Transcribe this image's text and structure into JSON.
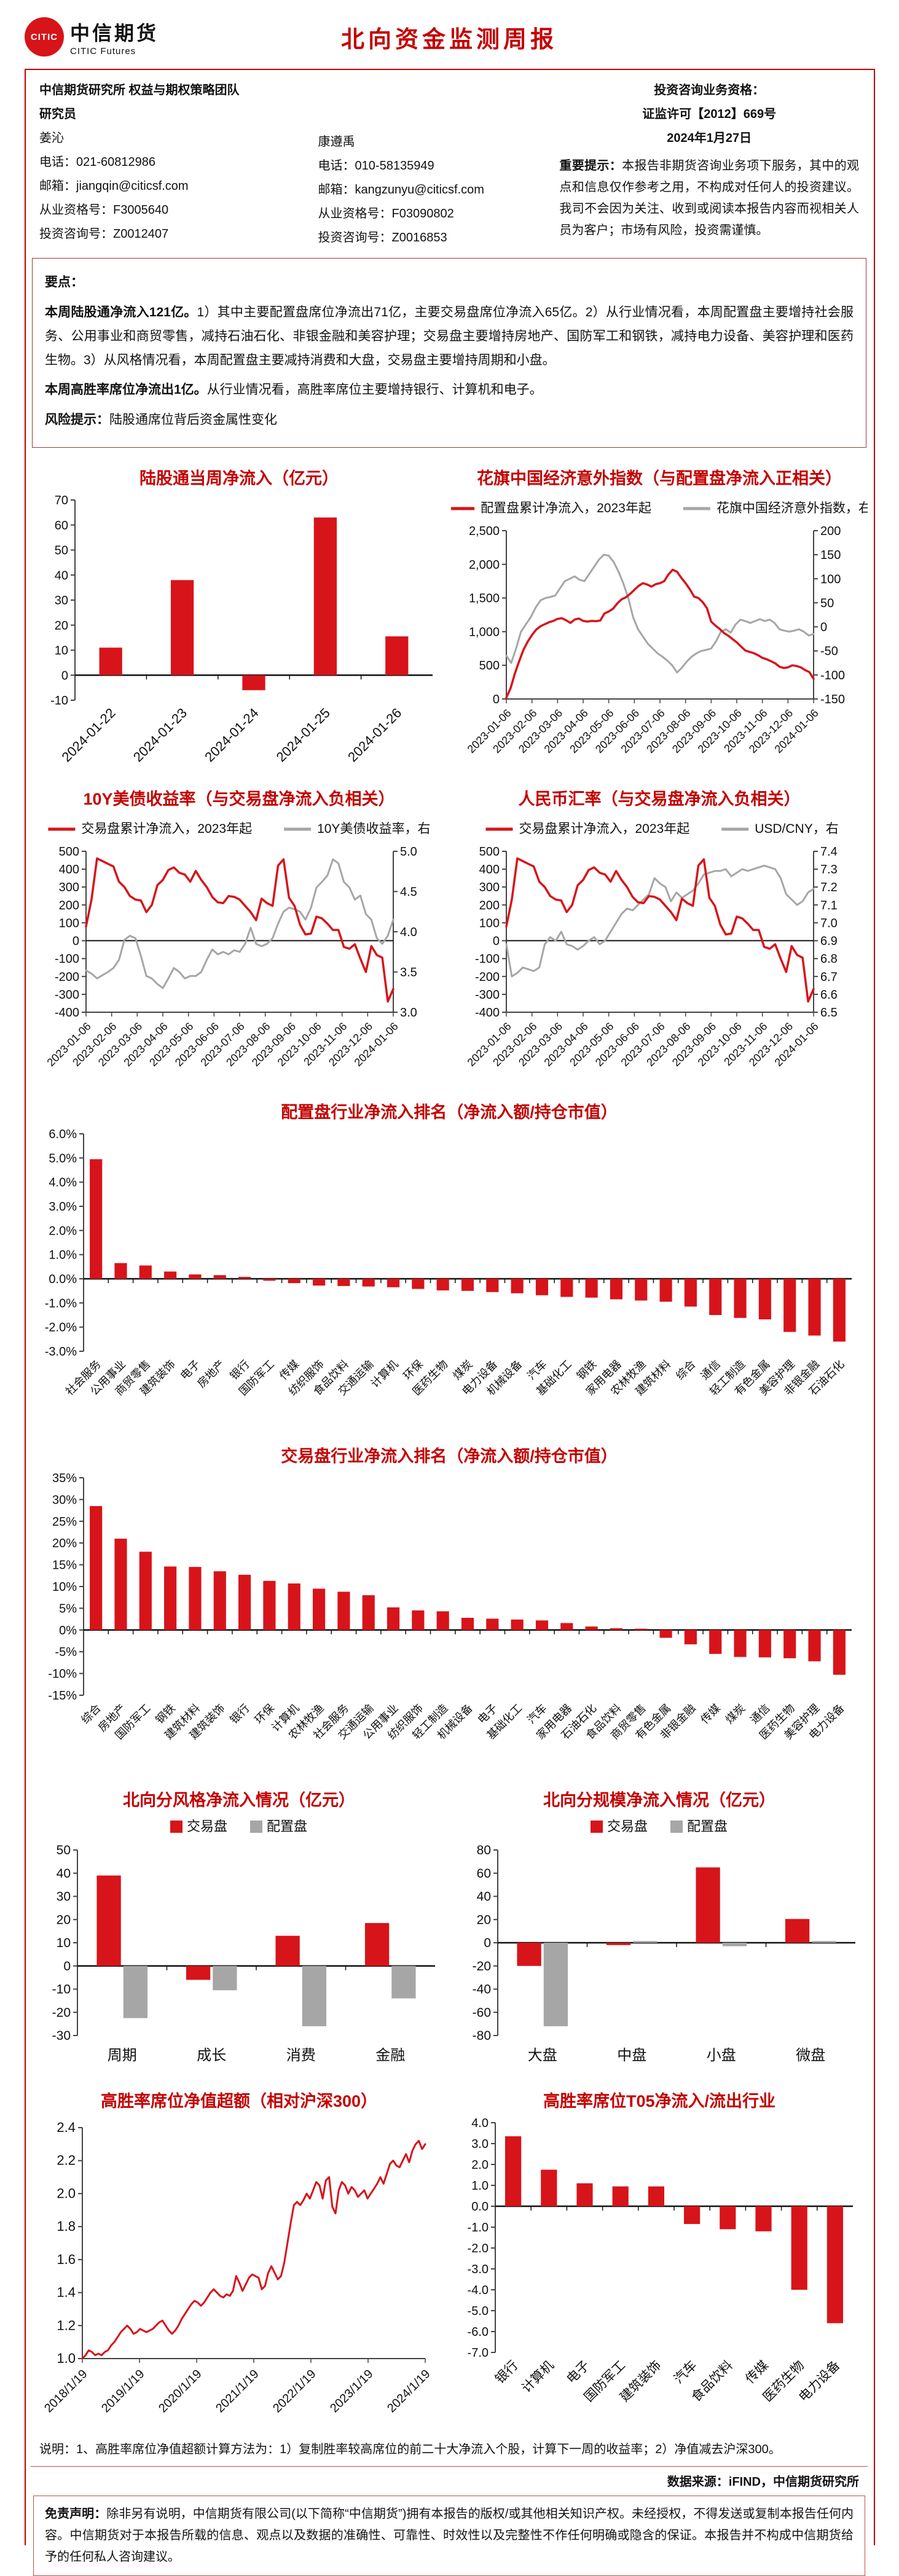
{
  "page": {
    "title": "北向资金监测周报",
    "brand": {
      "logo_mark_text": "CITIC",
      "logo_cn": "中信期货",
      "logo_en": "CITIC Futures"
    },
    "team_line": "中信期货研究所 权益与期权策略团队",
    "researcher_label": "研究员",
    "qualification_label": "投资咨询业务资格：",
    "qualification_value": "证监许可【2012】669号",
    "report_date": "2024年1月27日",
    "important_label": "重要提示：",
    "important_text": "本报告非期货咨询业务项下服务，其中的观点和信息仅作参考之用，不构成对任何人的投资建议。我司不会因为关注、收到或阅读本报告内容而视相关人员为客户；市场有风险，投资需谨慎。",
    "analysts": [
      {
        "name": "姜沁",
        "phone_label": "电话：",
        "phone": "021-60812986",
        "email_label": "邮箱：",
        "email": "jiangqin@citicsf.com",
        "cert_label": "从业资格号：",
        "cert": "F3005640",
        "adv_label": "投资咨询号：",
        "adv": "Z0012407"
      },
      {
        "name": "康遵禹",
        "phone_label": "电话：",
        "phone": "010-58135949",
        "email_label": "邮箱：",
        "email": "kangzunyu@citicsf.com",
        "cert_label": "从业资格号：",
        "cert": "F03090802",
        "adv_label": "投资咨询号：",
        "adv": "Z0016853"
      }
    ],
    "highlights_label": "要点：",
    "highlights": [
      {
        "bold": "本周陆股通净流入121亿。",
        "text": "1）其中主要配置盘席位净流出71亿，主要交易盘席位净流入65亿。2）从行业情况看，本周配置盘主要增持社会服务、公用事业和商贸零售，减持石油石化、非银金融和美容护理；交易盘主要增持房地产、国防军工和钢铁，减持电力设备、美容护理和医药生物。3）从风格情况看，本周配置盘主要减持消费和大盘，交易盘主要增持周期和小盘。"
      },
      {
        "bold": "本周高胜率席位净流出1亿。",
        "text": "从行业情况看，高胜率席位主要增持银行、计算机和电子。"
      }
    ],
    "risk_label": "风险提示：",
    "risk_text": "陆股通席位背后资金属性变化",
    "note": "说明：1、高胜率席位净值超额计算方法为：1）复制胜率较高席位的前二十大净流入个股，计算下一周的收益率；2）净值减去沪深300。",
    "source": "数据来源：iFIND，中信期货研究所",
    "disclaimer_label": "免责声明：",
    "disclaimer_text": "除非另有说明，中信期货有限公司(以下简称“中信期货”)拥有本报告的版权/或其他相关知识产权。未经授权，不得发送或复制本报告任何内容。中信期货对于本报告所载的信息、观点以及数据的准确性、可靠性、时效性以及完整性不作任何明确或隐含的保证。本报告并不构成中信期货给予的任何私人咨询建议。"
  },
  "colors": {
    "accent": "#c40000",
    "bar_red": "#d7141a",
    "gray": "#a6a6a6",
    "axis": "#444444",
    "ink": "#111111"
  },
  "chart_data": [
    {
      "type": "bar",
      "title": "陆股通当周净流入（亿元）",
      "categories": [
        "2024-01-22",
        "2024-01-23",
        "2024-01-24",
        "2024-01-25",
        "2024-01-26"
      ],
      "values": [
        11,
        38,
        -6,
        63,
        15.5
      ],
      "y": {
        "min": -10,
        "max": 70,
        "step": 10,
        "fmt": "int"
      },
      "barw": 0.32,
      "lfs": 22
    },
    {
      "type": "dual_line",
      "title": "花旗中国经济意外指数（与配置盘净流入正相关）",
      "legend": [
        "配置盘累计净流入，2023年起",
        "花旗中国经济意外指数，右"
      ],
      "x_labels": [
        "2023-01-06",
        "2023-02-06",
        "2023-03-06",
        "2023-04-06",
        "2023-05-06",
        "2023-06-06",
        "2023-07-06",
        "2023-08-06",
        "2023-09-06",
        "2023-10-06",
        "2023-11-06",
        "2023-12-06",
        "2024-01-06"
      ],
      "left_axis": {
        "min": 0,
        "max": 2500,
        "step": 500,
        "fmt": "comma"
      },
      "right_axis": {
        "min": -150,
        "max": 200,
        "step": 50,
        "fmt": "int"
      },
      "series_left": [
        20,
        160,
        380,
        560,
        730,
        850,
        950,
        1030,
        1080,
        1110,
        1140,
        1160,
        1190,
        1200,
        1170,
        1130,
        1180,
        1195,
        1160,
        1150,
        1160,
        1155,
        1165,
        1270,
        1300,
        1340,
        1420,
        1480,
        1510,
        1560,
        1620,
        1680,
        1720,
        1700,
        1670,
        1705,
        1720,
        1750,
        1850,
        1920,
        1890,
        1800,
        1720,
        1630,
        1520,
        1500,
        1440,
        1350,
        1150,
        1090,
        1040,
        980,
        940,
        890,
        840,
        780,
        720,
        700,
        680,
        650,
        610,
        590,
        560,
        530,
        480,
        460,
        470,
        500,
        490,
        470,
        430,
        400,
        300
      ],
      "series_right": [
        -60,
        -75,
        -45,
        -10,
        5,
        20,
        40,
        55,
        60,
        62,
        65,
        80,
        95,
        100,
        105,
        98,
        95,
        110,
        125,
        140,
        150,
        148,
        135,
        115,
        90,
        60,
        20,
        -5,
        -20,
        -35,
        -45,
        -55,
        -62,
        -70,
        -80,
        -95,
        -85,
        -72,
        -62,
        -55,
        -50,
        -48,
        -45,
        -30,
        -10,
        -5,
        -12,
        5,
        15,
        12,
        8,
        12,
        16,
        12,
        15,
        8,
        -5,
        -8,
        -10,
        -8,
        -5,
        -10,
        -18,
        -15
      ]
    },
    {
      "type": "dual_line",
      "title": "10Y美债收益率（与交易盘净流入负相关）",
      "legend": [
        "交易盘累计净流入，2023年起",
        "10Y美债收益率，右"
      ],
      "x_labels": [
        "2023-01-06",
        "2023-02-06",
        "2023-03-06",
        "2023-04-06",
        "2023-05-06",
        "2023-06-06",
        "2023-07-06",
        "2023-08-06",
        "2023-09-06",
        "2023-10-06",
        "2023-11-06",
        "2023-12-06",
        "2024-01-06"
      ],
      "left_axis": {
        "min": -400,
        "max": 500,
        "step": 100,
        "fmt": "int"
      },
      "right_axis": {
        "min": 3.0,
        "max": 5.0,
        "step": 0.5,
        "fmt": "1dp"
      },
      "series_left": [
        80,
        230,
        460,
        445,
        430,
        415,
        330,
        300,
        250,
        230,
        225,
        160,
        200,
        310,
        340,
        395,
        410,
        380,
        370,
        330,
        390,
        340,
        300,
        245,
        215,
        210,
        250,
        245,
        230,
        195,
        160,
        115,
        235,
        210,
        195,
        420,
        455,
        240,
        195,
        90,
        35,
        40,
        135,
        125,
        95,
        60,
        60,
        -35,
        -45,
        -20,
        -100,
        -175,
        -30,
        -80,
        -95,
        -340,
        -270
      ],
      "series_right": [
        3.52,
        3.48,
        3.42,
        3.46,
        3.5,
        3.55,
        3.65,
        3.9,
        3.95,
        3.92,
        3.7,
        3.45,
        3.42,
        3.35,
        3.3,
        3.42,
        3.55,
        3.5,
        3.42,
        3.45,
        3.45,
        3.5,
        3.65,
        3.78,
        3.72,
        3.75,
        3.72,
        3.77,
        3.75,
        3.85,
        4.05,
        3.85,
        3.82,
        3.85,
        3.92,
        4.1,
        4.25,
        4.3,
        4.28,
        4.25,
        4.15,
        4.3,
        4.55,
        4.62,
        4.7,
        4.9,
        4.85,
        4.62,
        4.55,
        4.4,
        4.45,
        4.22,
        4.15,
        3.92,
        3.85,
        3.95,
        4.15
      ]
    },
    {
      "type": "dual_line",
      "title": "人民币汇率（与交易盘净流入负相关）",
      "legend": [
        "交易盘累计净流入，2023年起",
        "USD/CNY，右"
      ],
      "x_labels": [
        "2023-01-06",
        "2023-02-06",
        "2023-03-06",
        "2023-04-06",
        "2023-05-06",
        "2023-06-06",
        "2023-07-06",
        "2023-08-06",
        "2023-09-06",
        "2023-10-06",
        "2023-11-06",
        "2023-12-06",
        "2024-01-06"
      ],
      "left_axis": {
        "min": -400,
        "max": 500,
        "step": 100,
        "fmt": "int"
      },
      "right_axis": {
        "min": 6.5,
        "max": 7.4,
        "step": 0.1,
        "fmt": "1dp"
      },
      "series_left": [
        80,
        230,
        460,
        445,
        430,
        415,
        330,
        300,
        250,
        230,
        225,
        160,
        200,
        310,
        340,
        395,
        410,
        380,
        370,
        330,
        390,
        340,
        300,
        245,
        215,
        210,
        250,
        245,
        230,
        195,
        160,
        115,
        235,
        210,
        195,
        420,
        455,
        240,
        195,
        90,
        35,
        40,
        135,
        125,
        95,
        60,
        60,
        -35,
        -45,
        -20,
        -100,
        -175,
        -30,
        -80,
        -95,
        -340,
        -270
      ],
      "series_right": [
        6.88,
        6.7,
        6.72,
        6.75,
        6.74,
        6.73,
        6.75,
        6.88,
        6.92,
        6.9,
        6.95,
        6.88,
        6.87,
        6.85,
        6.87,
        6.9,
        6.92,
        6.88,
        6.9,
        6.95,
        7.0,
        7.05,
        7.08,
        7.07,
        7.1,
        7.13,
        7.16,
        7.25,
        7.22,
        7.2,
        7.12,
        7.17,
        7.14,
        7.16,
        7.18,
        7.22,
        7.27,
        7.28,
        7.29,
        7.29,
        7.3,
        7.26,
        7.28,
        7.3,
        7.29,
        7.3,
        7.31,
        7.32,
        7.31,
        7.3,
        7.25,
        7.16,
        7.13,
        7.1,
        7.12,
        7.17,
        7.19
      ]
    },
    {
      "type": "bar",
      "title": "配置盘行业净流入排名（净流入额/持仓市值）",
      "categories": [
        "社会服务",
        "公用事业",
        "商贸零售",
        "建筑装饰",
        "电子",
        "房地产",
        "银行",
        "国防军工",
        "传媒",
        "纺织服饰",
        "食品饮料",
        "交通运输",
        "计算机",
        "环保",
        "医药生物",
        "煤炭",
        "电力设备",
        "机械设备",
        "汽车",
        "基础化工",
        "钢铁",
        "家用电器",
        "农林牧渔",
        "建筑材料",
        "综合",
        "通信",
        "轻工制造",
        "有色金属",
        "美容护理",
        "非银金融",
        "石油石化"
      ],
      "values": [
        4.95,
        0.65,
        0.55,
        0.3,
        0.18,
        0.15,
        0.08,
        -0.08,
        -0.18,
        -0.28,
        -0.3,
        -0.32,
        -0.35,
        -0.42,
        -0.48,
        -0.5,
        -0.55,
        -0.6,
        -0.68,
        -0.75,
        -0.78,
        -0.85,
        -0.9,
        -0.95,
        -1.15,
        -1.5,
        -1.62,
        -1.68,
        -2.2,
        -2.35,
        -2.6
      ],
      "y": {
        "min": -3,
        "max": 6,
        "step": 1,
        "fmt": "pct1"
      },
      "barw": 0.5,
      "lfs": 18
    },
    {
      "type": "bar",
      "title": "交易盘行业净流入排名（净流入额/持仓市值）",
      "categories": [
        "综合",
        "房地产",
        "国防军工",
        "钢铁",
        "建筑材料",
        "建筑装饰",
        "银行",
        "环保",
        "计算机",
        "农林牧渔",
        "社会服务",
        "交通运输",
        "公用事业",
        "纺织服饰",
        "轻工制造",
        "机械设备",
        "电子",
        "基础化工",
        "汽车",
        "家用电器",
        "石油石化",
        "食品饮料",
        "商贸零售",
        "有色金属",
        "非银金融",
        "传媒",
        "煤炭",
        "通信",
        "医药生物",
        "美容护理",
        "电力设备"
      ],
      "values": [
        28.5,
        21,
        18,
        14.6,
        14.5,
        13.5,
        12.7,
        11.3,
        10.7,
        9.5,
        8.8,
        8,
        5.2,
        4.5,
        4.3,
        2.8,
        2.6,
        2.4,
        2.2,
        1.6,
        0.8,
        0.4,
        0.3,
        -1.8,
        -3.3,
        -5.5,
        -6.2,
        -6.3,
        -6.5,
        -7.2,
        -10.3
      ],
      "y": {
        "min": -15,
        "max": 35,
        "step": 5,
        "fmt": "pct0"
      },
      "barw": 0.5,
      "lfs": 18
    },
    {
      "type": "grouped_bar",
      "title": "北向分风格净流入情况（亿元）",
      "legend": [
        "交易盘",
        "配置盘"
      ],
      "categories": [
        "周期",
        "成长",
        "消费",
        "金融"
      ],
      "series": [
        {
          "name": "交易盘",
          "values": [
            39,
            -6,
            13,
            18.5
          ]
        },
        {
          "name": "配置盘",
          "values": [
            -22.5,
            -10.5,
            -26,
            -14
          ]
        }
      ],
      "y": {
        "min": -30,
        "max": 50,
        "step": 10,
        "fmt": "int"
      }
    },
    {
      "type": "grouped_bar",
      "title": "北向分规模净流入情况（亿元）",
      "legend": [
        "交易盘",
        "配置盘"
      ],
      "categories": [
        "大盘",
        "中盘",
        "小盘",
        "微盘"
      ],
      "series": [
        {
          "name": "交易盘",
          "values": [
            -20,
            -2,
            65,
            20.5
          ]
        },
        {
          "name": "配置盘",
          "values": [
            -72,
            1.5,
            -3,
            1.5
          ]
        }
      ],
      "y": {
        "min": -80,
        "max": 80,
        "step": 20,
        "fmt": "int"
      }
    },
    {
      "type": "line",
      "title": "高胜率席位净值超额（相对沪深300）",
      "x_labels": [
        "2018/1/19",
        "2019/1/19",
        "2020/1/19",
        "2021/1/19",
        "2022/1/19",
        "2023/1/19",
        "2024/1/19"
      ],
      "y": {
        "min": 1.0,
        "max": 2.4,
        "step": 0.2,
        "fmt": "1dp"
      },
      "points": [
        1.0,
        1.02,
        1.05,
        1.04,
        1.02,
        1.03,
        1.02,
        1.04,
        1.05,
        1.08,
        1.1,
        1.13,
        1.16,
        1.18,
        1.2,
        1.18,
        1.15,
        1.16,
        1.18,
        1.17,
        1.16,
        1.17,
        1.18,
        1.2,
        1.22,
        1.23,
        1.2,
        1.17,
        1.15,
        1.17,
        1.2,
        1.24,
        1.27,
        1.3,
        1.33,
        1.35,
        1.34,
        1.32,
        1.34,
        1.37,
        1.4,
        1.42,
        1.4,
        1.38,
        1.37,
        1.39,
        1.38,
        1.41,
        1.5,
        1.46,
        1.41,
        1.45,
        1.49,
        1.51,
        1.5,
        1.49,
        1.42,
        1.44,
        1.52,
        1.56,
        1.52,
        1.48,
        1.5,
        1.58,
        1.7,
        1.82,
        1.93,
        1.95,
        1.93,
        1.96,
        2.0,
        1.97,
        2.02,
        2.07,
        2.05,
        1.97,
        2.08,
        2.1,
        1.92,
        1.88,
        2.02,
        2.07,
        2.05,
        2.0,
        2.04,
        2.02,
        1.98,
        2.0,
        2.02,
        1.97,
        2.0,
        2.03,
        2.06,
        2.1,
        2.06,
        2.12,
        2.18,
        2.2,
        2.17,
        2.16,
        2.2,
        2.24,
        2.19,
        2.26,
        2.3,
        2.32,
        2.27,
        2.3
      ]
    },
    {
      "type": "bar",
      "title": "高胜率席位T05净流入/流出行业",
      "categories": [
        "银行",
        "计算机",
        "电子",
        "国防军工",
        "建筑装饰",
        "汽车",
        "食品饮料",
        "传媒",
        "医药生物",
        "电力设备"
      ],
      "values": [
        3.35,
        1.75,
        1.1,
        0.95,
        0.95,
        -0.85,
        -1.1,
        -1.2,
        -4.0,
        -5.6
      ],
      "y": {
        "min": -7,
        "max": 4,
        "step": 1,
        "fmt": "1dp"
      },
      "barw": 0.45,
      "lfs": 21
    }
  ]
}
